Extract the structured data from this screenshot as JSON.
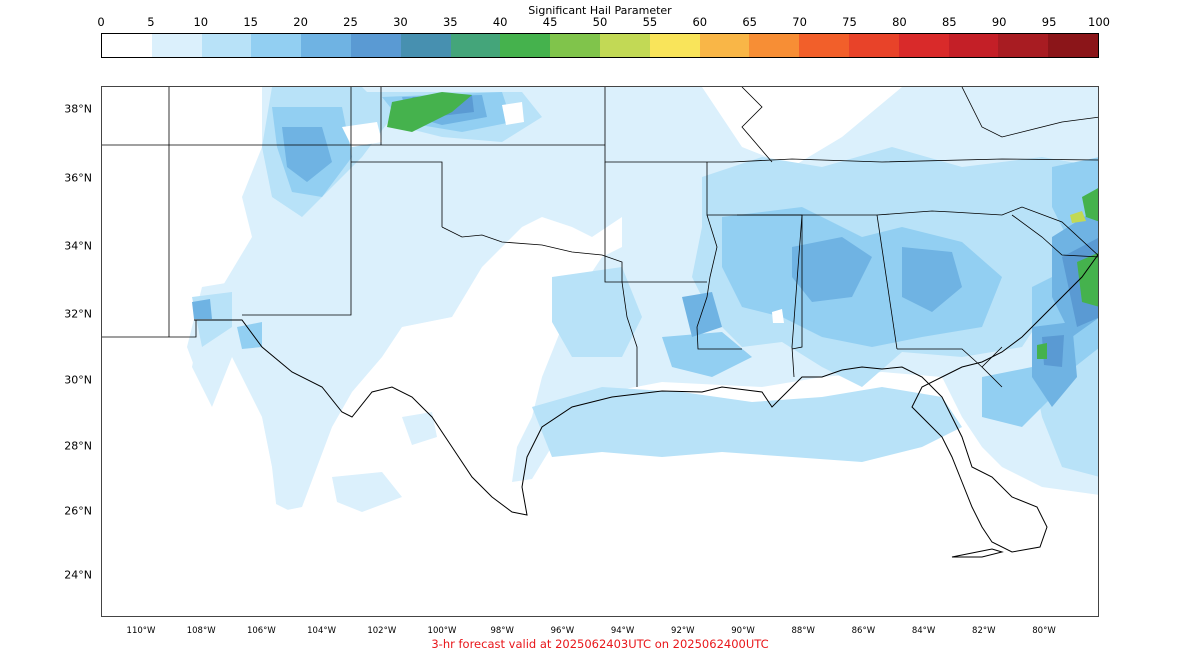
{
  "colorbar": {
    "title": "Significant Hail Parameter",
    "ticks": [
      "0",
      "5",
      "10",
      "15",
      "20",
      "25",
      "30",
      "35",
      "40",
      "45",
      "50",
      "55",
      "60",
      "65",
      "70",
      "75",
      "80",
      "85",
      "90",
      "95",
      "100"
    ],
    "colors": [
      "#ffffff",
      "#dbf0fc",
      "#b8e2f8",
      "#92cff2",
      "#6fb3e3",
      "#5a9ad3",
      "#4790b0",
      "#44a57a",
      "#45b24d",
      "#80c44b",
      "#c2d955",
      "#f9e45a",
      "#f9b647",
      "#f78e35",
      "#f25f2a",
      "#e84329",
      "#d92a2a",
      "#c41f27",
      "#a81c22",
      "#8b1519"
    ]
  },
  "map": {
    "lat_labels": [
      "38°N",
      "36°N",
      "34°N",
      "32°N",
      "30°N",
      "28°N",
      "26°N",
      "24°N"
    ],
    "lon_labels": [
      "110°W",
      "108°W",
      "106°W",
      "104°W",
      "102°W",
      "100°W",
      "98°W",
      "96°W",
      "94°W",
      "92°W",
      "90°W",
      "88°W",
      "86°W",
      "84°W",
      "82°W",
      "80°W"
    ],
    "colors": {
      "light": "#dbf0fc",
      "medium": "#b8e2f8",
      "mid": "#92cff2",
      "dark": "#6fb3e3",
      "deeper": "#5a9ad3",
      "green": "#45b24d",
      "yellow": "#c2d955",
      "border": "#000000"
    }
  },
  "footer": {
    "text": "3-hr forecast valid at 2025062403UTC on 2025062400UTC"
  }
}
